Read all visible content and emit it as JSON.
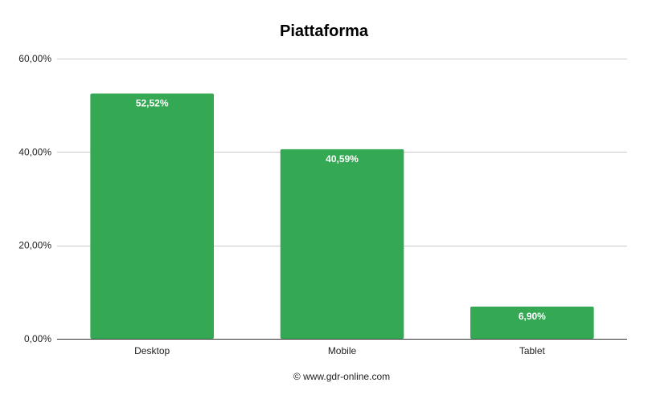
{
  "chart_data": {
    "type": "bar",
    "title": "Piattaforma",
    "categories": [
      "Desktop",
      "Mobile",
      "Tablet"
    ],
    "values": [
      52.52,
      40.59,
      6.9
    ],
    "data_labels": [
      "52,52%",
      "40,59%",
      "6,90%"
    ],
    "ylim": [
      0,
      60
    ],
    "yticks": [
      0,
      20,
      40,
      60
    ],
    "ytick_labels": [
      "0,00%",
      "20,00%",
      "40,00%",
      "60,00%"
    ],
    "xlabel": "",
    "ylabel": "",
    "grid": true,
    "legend": "none",
    "bar_color": "#34a853",
    "gridline_color": "#cccccc",
    "axis_color": "#333333"
  },
  "footer": {
    "text": "© www.gdr-online.com"
  }
}
